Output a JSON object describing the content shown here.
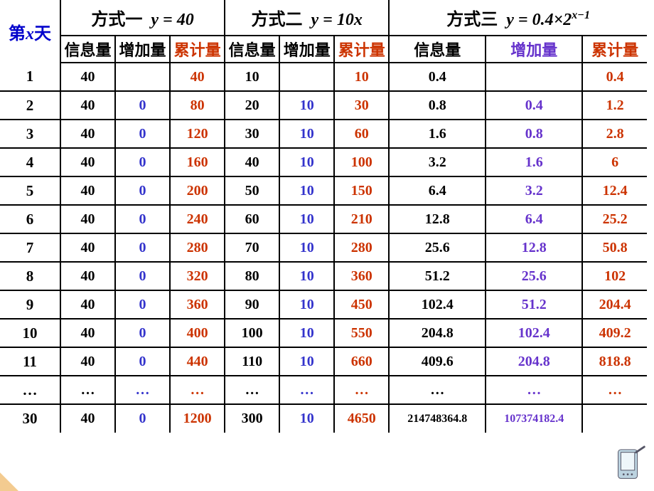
{
  "header": {
    "day_label_1": "第",
    "day_label_var": "x",
    "day_label_2": "天",
    "m1_title_cn": "方式一",
    "m1_formula": "y = 40",
    "m2_title_cn": "方式二",
    "m2_formula": "y = 10x",
    "m3_title_cn": "方式三",
    "m3_formula_pre": "y = 0.4×2",
    "m3_formula_sup": "x−1",
    "sub_info": "信息量",
    "sub_inc": "增加量",
    "sub_cum": "累计量"
  },
  "colors": {
    "info": "#000000",
    "inc_m1": "#3333cc",
    "inc_m3": "#6633cc",
    "cum": "#cc3300",
    "day_label": "#0000cc"
  },
  "rows": [
    {
      "day": "1",
      "m1": {
        "info": "40",
        "inc": "",
        "cum": "40"
      },
      "m2": {
        "info": "10",
        "inc": "",
        "cum": "10"
      },
      "m3": {
        "info": "0.4",
        "inc": "",
        "cum": "0.4"
      }
    },
    {
      "day": "2",
      "m1": {
        "info": "40",
        "inc": "0",
        "cum": "80"
      },
      "m2": {
        "info": "20",
        "inc": "10",
        "cum": "30"
      },
      "m3": {
        "info": "0.8",
        "inc": "0.4",
        "cum": "1.2"
      }
    },
    {
      "day": "3",
      "m1": {
        "info": "40",
        "inc": "0",
        "cum": "120"
      },
      "m2": {
        "info": "30",
        "inc": "10",
        "cum": "60"
      },
      "m3": {
        "info": "1.6",
        "inc": "0.8",
        "cum": "2.8"
      }
    },
    {
      "day": "4",
      "m1": {
        "info": "40",
        "inc": "0",
        "cum": "160"
      },
      "m2": {
        "info": "40",
        "inc": "10",
        "cum": "100"
      },
      "m3": {
        "info": "3.2",
        "inc": "1.6",
        "cum": "6"
      }
    },
    {
      "day": "5",
      "m1": {
        "info": "40",
        "inc": "0",
        "cum": "200"
      },
      "m2": {
        "info": "50",
        "inc": "10",
        "cum": "150"
      },
      "m3": {
        "info": "6.4",
        "inc": "3.2",
        "cum": "12.4"
      }
    },
    {
      "day": "6",
      "m1": {
        "info": "40",
        "inc": "0",
        "cum": "240"
      },
      "m2": {
        "info": "60",
        "inc": "10",
        "cum": "210"
      },
      "m3": {
        "info": "12.8",
        "inc": "6.4",
        "cum": "25.2"
      }
    },
    {
      "day": "7",
      "m1": {
        "info": "40",
        "inc": "0",
        "cum": "280"
      },
      "m2": {
        "info": "70",
        "inc": "10",
        "cum": "280"
      },
      "m3": {
        "info": "25.6",
        "inc": "12.8",
        "cum": "50.8"
      }
    },
    {
      "day": "8",
      "m1": {
        "info": "40",
        "inc": "0",
        "cum": "320"
      },
      "m2": {
        "info": "80",
        "inc": "10",
        "cum": "360"
      },
      "m3": {
        "info": "51.2",
        "inc": "25.6",
        "cum": "102"
      }
    },
    {
      "day": "9",
      "m1": {
        "info": "40",
        "inc": "0",
        "cum": "360"
      },
      "m2": {
        "info": "90",
        "inc": "10",
        "cum": "450"
      },
      "m3": {
        "info": "102.4",
        "inc": "51.2",
        "cum": "204.4"
      }
    },
    {
      "day": "10",
      "m1": {
        "info": "40",
        "inc": "0",
        "cum": "400"
      },
      "m2": {
        "info": "100",
        "inc": "10",
        "cum": "550"
      },
      "m3": {
        "info": "204.8",
        "inc": "102.4",
        "cum": "409.2"
      }
    },
    {
      "day": "11",
      "m1": {
        "info": "40",
        "inc": "0",
        "cum": "440"
      },
      "m2": {
        "info": "110",
        "inc": "10",
        "cum": "660"
      },
      "m3": {
        "info": "409.6",
        "inc": "204.8",
        "cum": "818.8"
      }
    },
    {
      "day": "…",
      "m1": {
        "info": "…",
        "inc": "…",
        "cum": "…"
      },
      "m2": {
        "info": "…",
        "inc": "…",
        "cum": "…"
      },
      "m3": {
        "info": "…",
        "inc": "…",
        "cum": "…"
      }
    },
    {
      "day": "30",
      "m1": {
        "info": "40",
        "inc": "0",
        "cum": "1200"
      },
      "m2": {
        "info": "300",
        "inc": "10",
        "cum": "4650"
      },
      "m3": {
        "info": "214748364.8",
        "inc": "107374182.4",
        "cum": ""
      }
    }
  ]
}
